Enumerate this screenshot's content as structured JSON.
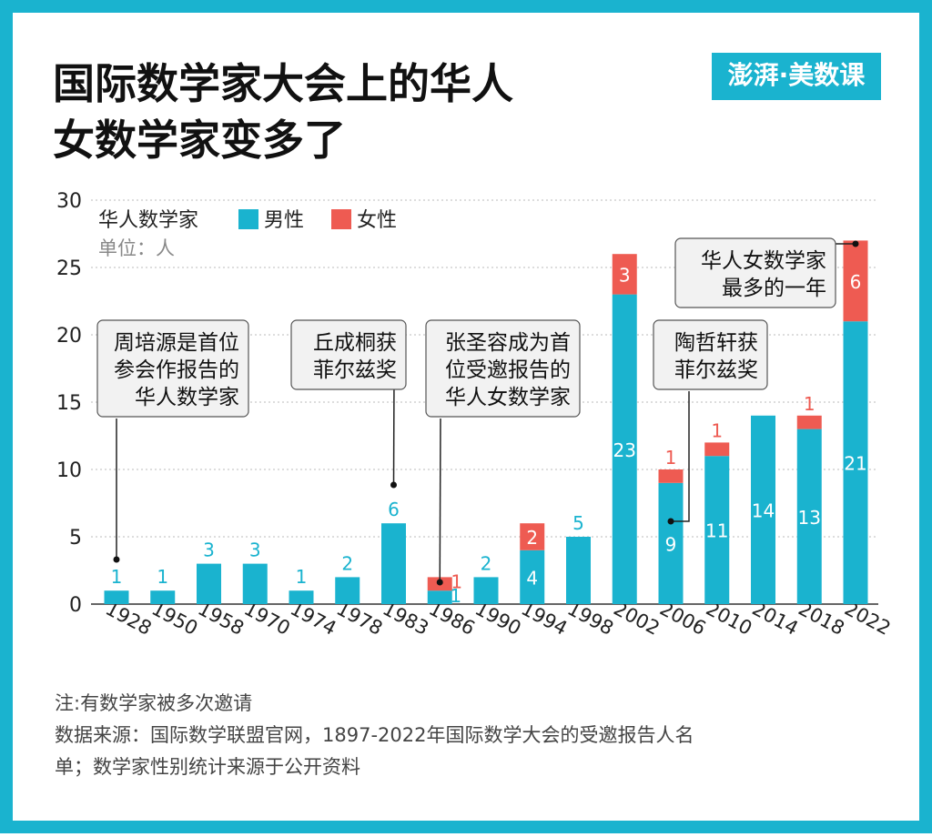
{
  "chart_data": {
    "type": "stacked_bar",
    "title": [
      "国际数学家大会上的华人",
      "女数学家变多了"
    ],
    "brand": "澎湃·美数课",
    "legend_title": "华人数学家",
    "unit": "单位：人",
    "categories": [
      "1928",
      "1950",
      "1958",
      "1970",
      "1974",
      "1978",
      "1983",
      "1986",
      "1990",
      "1994",
      "1998",
      "2002",
      "2006",
      "2010",
      "2014",
      "2018",
      "2022"
    ],
    "series": [
      {
        "name": "男性",
        "color": "#1ab3cf",
        "values": [
          1,
          1,
          3,
          3,
          1,
          2,
          6,
          1,
          2,
          4,
          5,
          23,
          9,
          11,
          14,
          13,
          21
        ]
      },
      {
        "name": "女性",
        "color": "#ee5b52",
        "values": [
          null,
          null,
          null,
          null,
          null,
          null,
          null,
          1,
          null,
          2,
          null,
          3,
          1,
          1,
          null,
          1,
          6
        ]
      }
    ],
    "ylim": [
      0,
      30
    ],
    "yticks": [
      0,
      5,
      10,
      15,
      20,
      25,
      30
    ],
    "grid": true,
    "annotations": [
      {
        "lines": [
          "周培源是首位",
          "参会作报告的",
          "华人数学家"
        ],
        "category": "1928"
      },
      {
        "lines": [
          "丘成桐获",
          "菲尔兹奖"
        ],
        "category": "1983"
      },
      {
        "lines": [
          "张圣容成为首",
          "位受邀报告的",
          "华人女数学家"
        ],
        "category": "1986"
      },
      {
        "lines": [
          "陶哲轩获",
          "菲尔兹奖"
        ],
        "category": "2006"
      },
      {
        "lines": [
          "华人女数学家",
          "最多的一年"
        ],
        "category": "2022"
      }
    ],
    "notes": [
      "注:有数学家被多次邀请",
      "数据来源：国际数学联盟官网，1897-2022年国际数学大会的受邀报告人名",
      "单；数学家性别统计来源于公开资料"
    ]
  }
}
